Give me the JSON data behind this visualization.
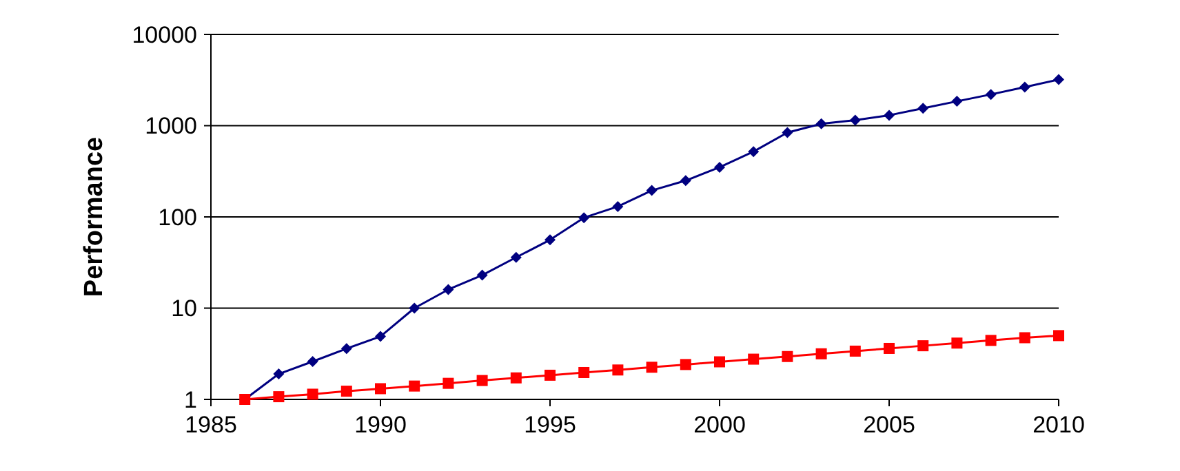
{
  "chart_data": {
    "type": "line",
    "ylabel": "Performance",
    "log": true,
    "grid": "y",
    "x": [
      1986,
      1987,
      1988,
      1989,
      1990,
      1991,
      1992,
      1993,
      1994,
      1995,
      1996,
      1997,
      1998,
      1999,
      2000,
      2001,
      2002,
      2003,
      2004,
      2005,
      2006,
      2007,
      2008,
      2009,
      2010
    ],
    "xlim": [
      1985,
      2010
    ],
    "xticks": [
      1985,
      1990,
      1995,
      2000,
      2005,
      2010
    ],
    "ylim": [
      1,
      10000
    ],
    "yticks": [
      1,
      10,
      100,
      1000,
      10000
    ],
    "series": [
      {
        "color": "#000080",
        "marker": "diamond",
        "values": [
          1,
          1.9,
          2.6,
          3.6,
          4.9,
          10,
          16,
          23,
          36,
          56,
          98,
          130,
          195,
          250,
          350,
          520,
          840,
          1050,
          1150,
          1300,
          1550,
          1850,
          2200,
          2650,
          3200
        ]
      },
      {
        "color": "#ff0000",
        "marker": "square",
        "values": [
          1,
          1.07,
          1.14,
          1.23,
          1.31,
          1.4,
          1.5,
          1.61,
          1.72,
          1.84,
          1.97,
          2.1,
          2.25,
          2.41,
          2.58,
          2.76,
          2.95,
          3.16,
          3.38,
          3.62,
          3.87,
          4.14,
          4.43,
          4.74,
          5.0
        ]
      }
    ]
  }
}
